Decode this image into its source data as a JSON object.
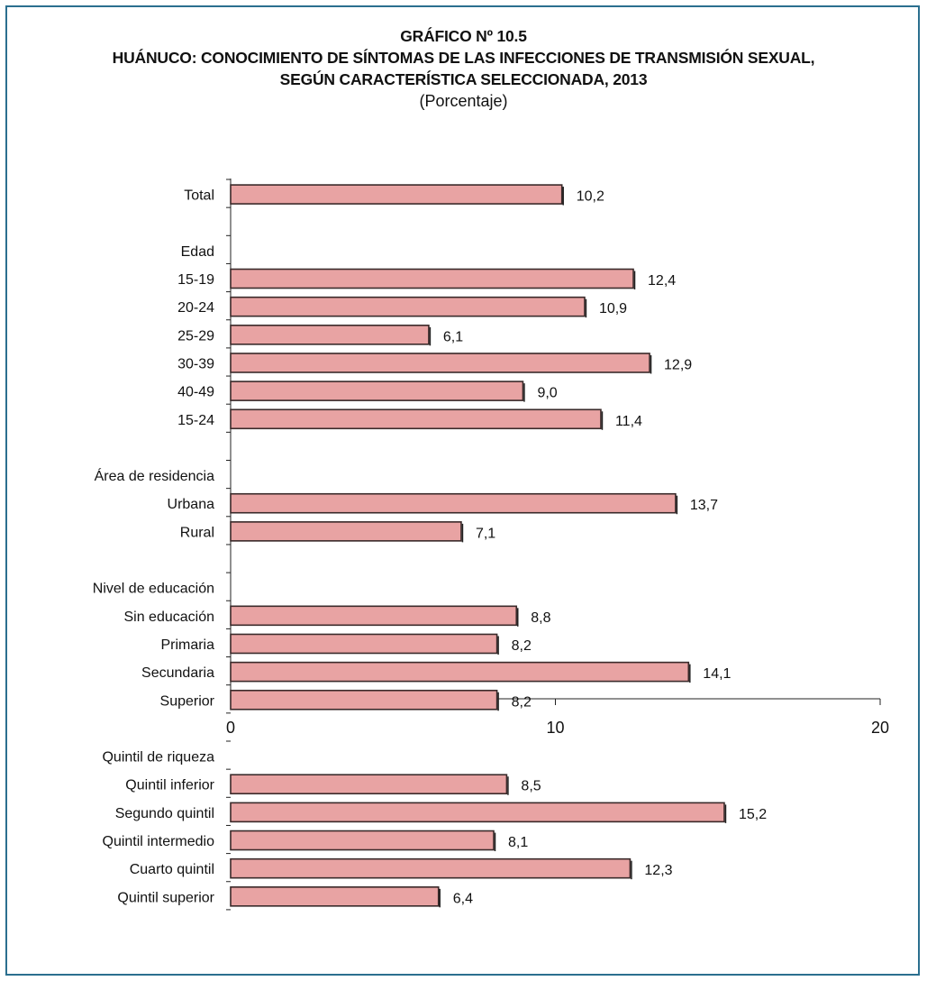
{
  "chart_data": {
    "type": "bar",
    "orientation": "horizontal",
    "title_lines": [
      "GRÁFICO Nº 10.5",
      "HUÁNUCO: CONOCIMIENTO DE SÍNTOMAS DE LAS INFECCIONES DE TRANSMISIÓN SEXUAL,",
      "SEGÚN CARACTERÍSTICA SELECCIONADA, 2013"
    ],
    "subtitle": "(Porcentaje)",
    "rows": [
      {
        "label": "Total",
        "value": 10.2,
        "value_label": "10,2"
      },
      {
        "label": "",
        "value": null,
        "value_label": ""
      },
      {
        "label": "Edad",
        "value": null,
        "value_label": ""
      },
      {
        "label": "15-19",
        "value": 12.4,
        "value_label": "12,4"
      },
      {
        "label": "20-24",
        "value": 10.9,
        "value_label": "10,9"
      },
      {
        "label": "25-29",
        "value": 6.1,
        "value_label": "6,1"
      },
      {
        "label": "30-39",
        "value": 12.9,
        "value_label": "12,9"
      },
      {
        "label": "40-49",
        "value": 9.0,
        "value_label": "9,0"
      },
      {
        "label": "15-24",
        "value": 11.4,
        "value_label": "11,4"
      },
      {
        "label": "",
        "value": null,
        "value_label": ""
      },
      {
        "label": "Área de residencia",
        "value": null,
        "value_label": "",
        "header": true
      },
      {
        "label": "Urbana",
        "value": 13.7,
        "value_label": "13,7"
      },
      {
        "label": "Rural",
        "value": 7.1,
        "value_label": "7,1"
      },
      {
        "label": "",
        "value": null,
        "value_label": ""
      },
      {
        "label": "Nivel de educación",
        "value": null,
        "value_label": "",
        "header": true
      },
      {
        "label": "Sin educación",
        "value": 8.8,
        "value_label": "8,8"
      },
      {
        "label": "Primaria",
        "value": 8.2,
        "value_label": "8,2"
      },
      {
        "label": "Secundaria",
        "value": 14.1,
        "value_label": "14,1"
      },
      {
        "label": "Superior",
        "value": 8.2,
        "value_label": "8,2"
      },
      {
        "label": "",
        "value": null,
        "value_label": ""
      },
      {
        "label": "Quintil de riqueza",
        "value": null,
        "value_label": "",
        "header": true
      },
      {
        "label": "Quintil inferior",
        "value": 8.5,
        "value_label": "8,5"
      },
      {
        "label": "Segundo quintil",
        "value": 15.2,
        "value_label": "15,2"
      },
      {
        "label": "Quintil intermedio",
        "value": 8.1,
        "value_label": "8,1"
      },
      {
        "label": "Cuarto quintil",
        "value": 12.3,
        "value_label": "12,3"
      },
      {
        "label": "Quintil superior",
        "value": 6.4,
        "value_label": "6,4"
      }
    ],
    "xlim": [
      0,
      20
    ],
    "xticks": [
      0,
      10,
      20
    ],
    "grid": false,
    "legend": "none",
    "colors": {
      "bar_fill": "#e8a3a3",
      "bar_stroke": "#3a2a2a",
      "frame": "#2b6f8f"
    }
  }
}
